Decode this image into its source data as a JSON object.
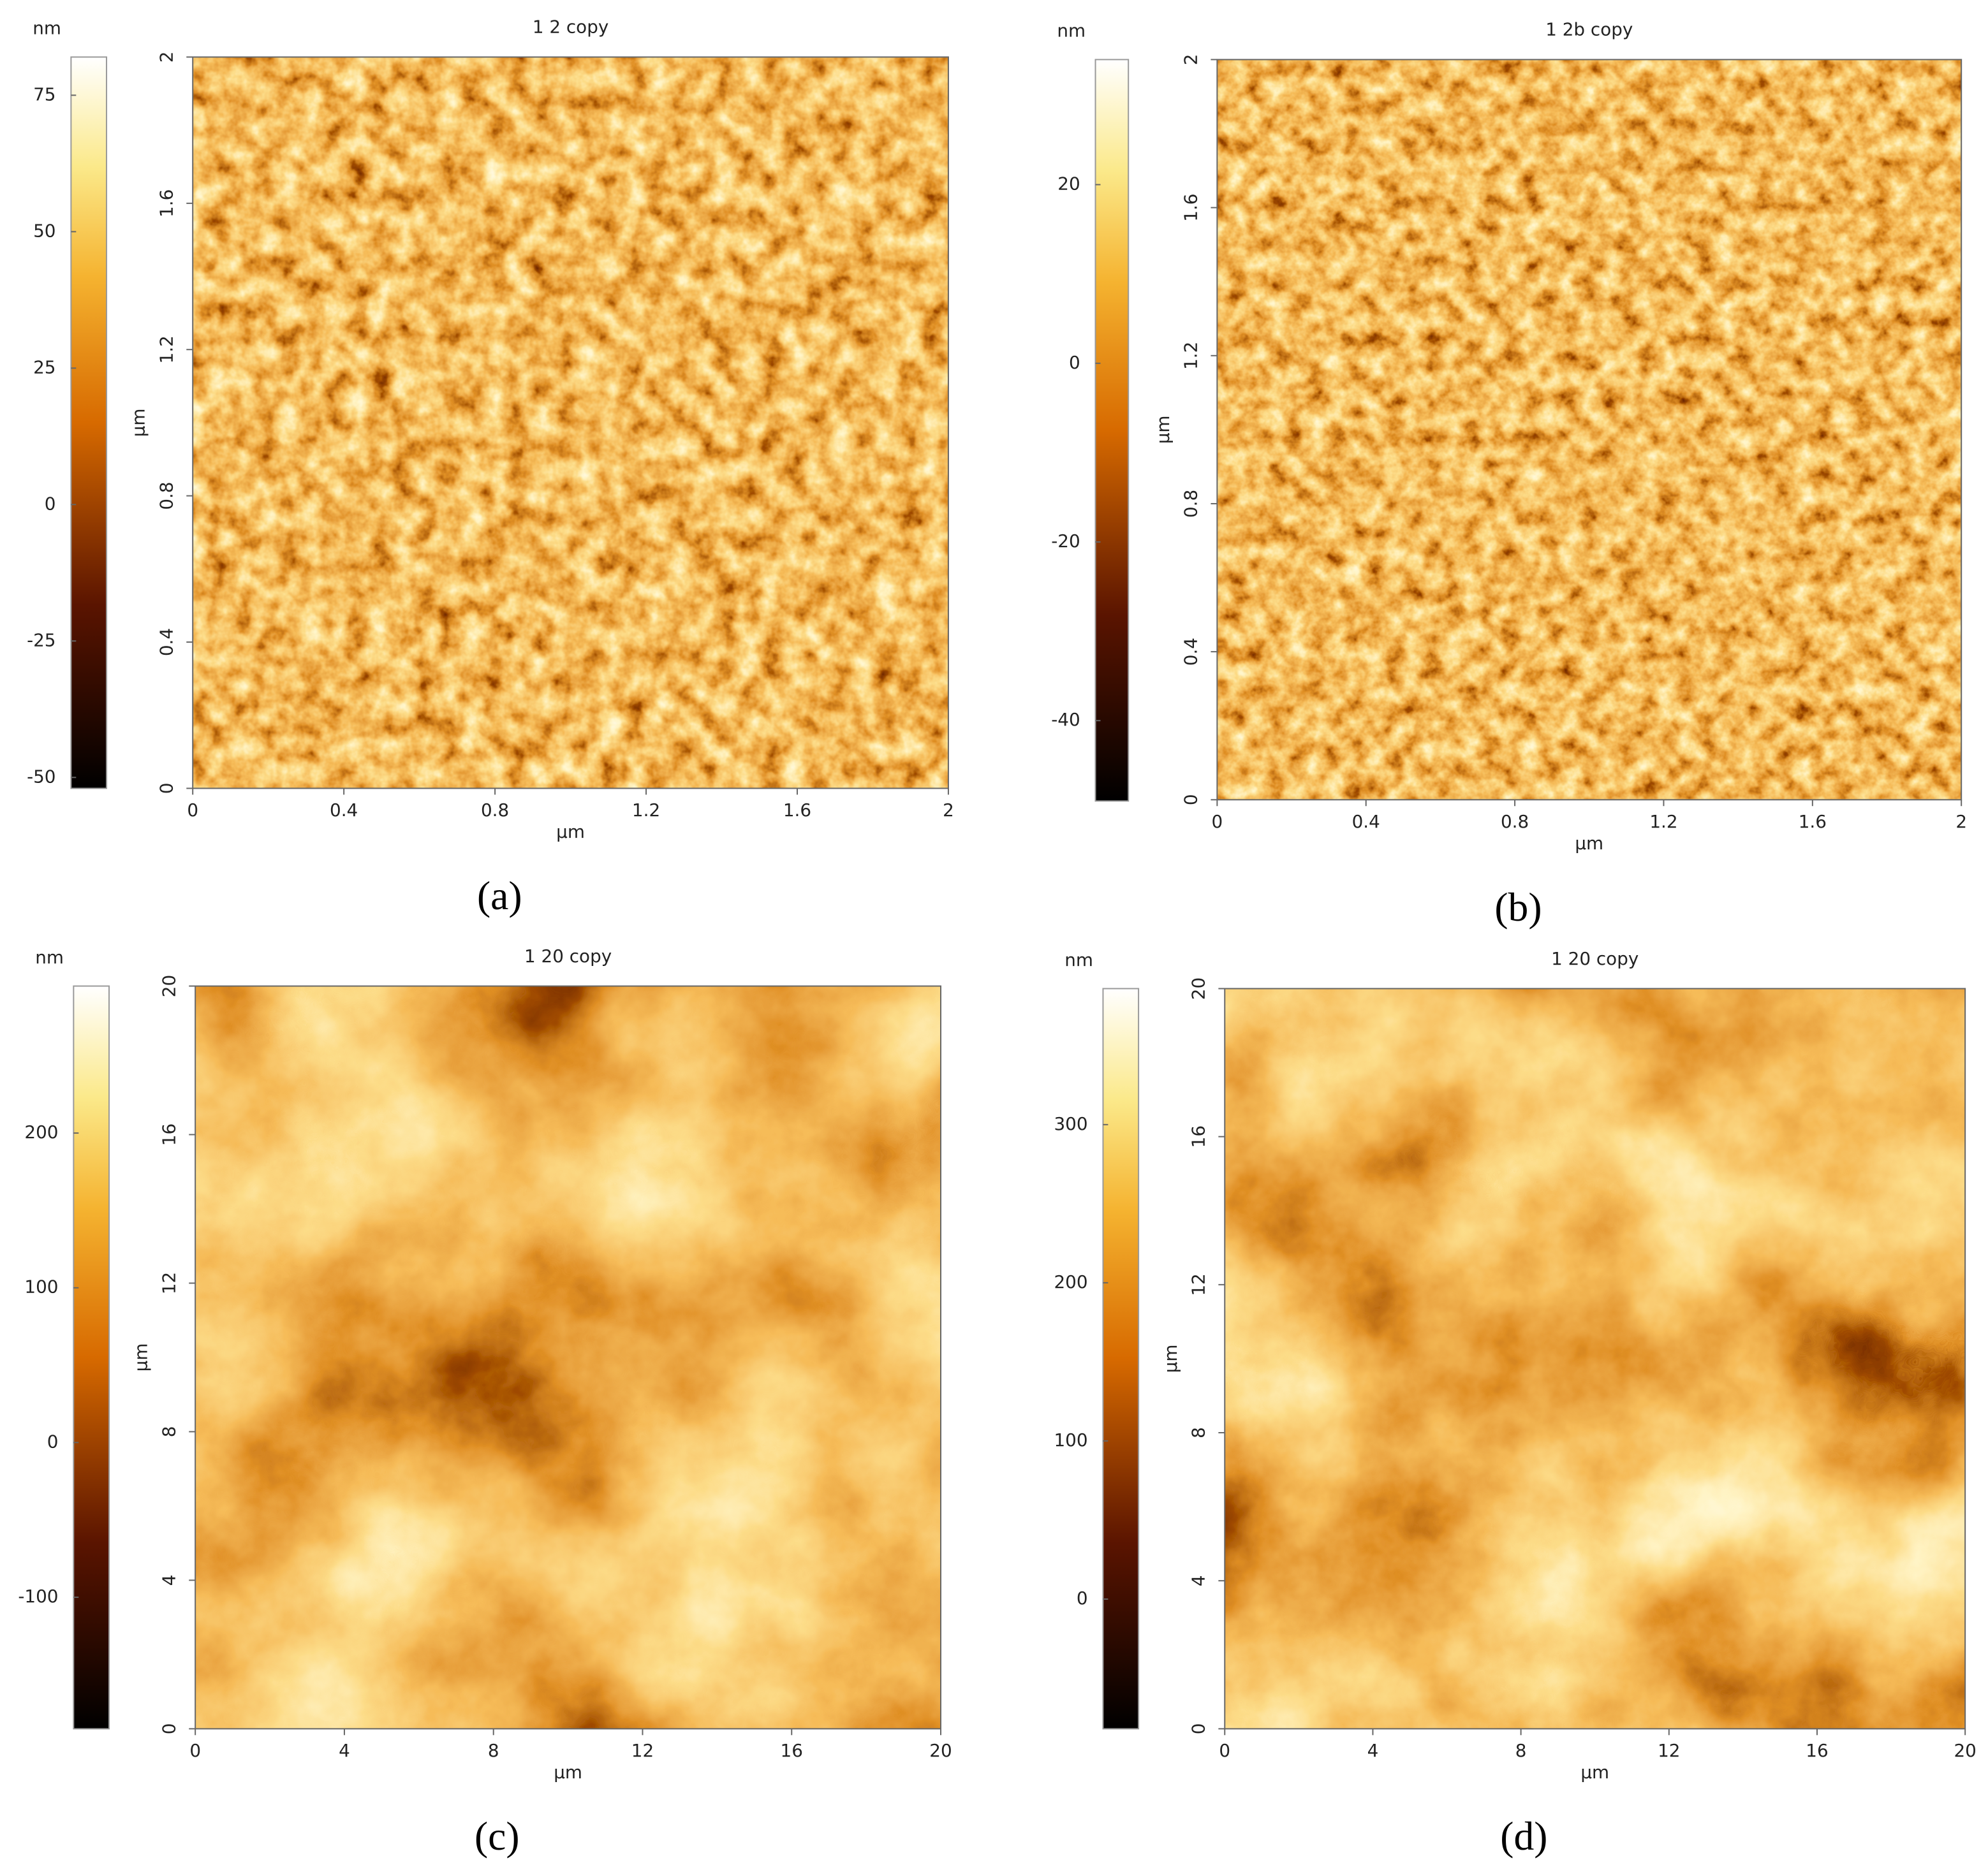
{
  "chart_data": [
    {
      "type": "heatmap",
      "title": "1 2 copy",
      "panel_label": "(a)",
      "colorbar_label": "nm",
      "clim": [
        -52,
        82
      ],
      "cticks": [
        -50,
        -25,
        0,
        25,
        50,
        75
      ],
      "xlabel": "µm",
      "ylabel": "µm",
      "xlim": [
        0,
        2
      ],
      "xticks": [
        0,
        0.4,
        0.8,
        1.2,
        1.6,
        2
      ],
      "ylim": [
        0,
        2
      ],
      "yticks": [
        0,
        0.4,
        0.8,
        1.2,
        1.6,
        2
      ]
    },
    {
      "type": "heatmap",
      "title": "1 2b copy",
      "panel_label": "(b)",
      "colorbar_label": "nm",
      "clim": [
        -49,
        34
      ],
      "cticks": [
        -40,
        -20,
        0,
        20
      ],
      "xlabel": "µm",
      "ylabel": "µm",
      "xlim": [
        0,
        2
      ],
      "xticks": [
        0,
        0.4,
        0.8,
        1.2,
        1.6,
        2
      ],
      "ylim": [
        0,
        2
      ],
      "yticks": [
        0,
        0.4,
        0.8,
        1.2,
        1.6,
        2
      ]
    },
    {
      "type": "heatmap",
      "title": "1 20 copy",
      "panel_label": "(c)",
      "colorbar_label": "nm",
      "clim": [
        -185,
        295
      ],
      "cticks": [
        -100,
        0,
        100,
        200
      ],
      "xlabel": "µm",
      "ylabel": "µm",
      "xlim": [
        0,
        20
      ],
      "xticks": [
        0,
        4,
        8,
        12,
        16,
        20
      ],
      "ylim": [
        0,
        20
      ],
      "yticks": [
        0,
        4,
        8,
        12,
        16,
        20
      ]
    },
    {
      "type": "heatmap",
      "title": "1 20 copy",
      "panel_label": "(d)",
      "colorbar_label": "nm",
      "clim": [
        -82,
        386
      ],
      "cticks": [
        0,
        100,
        200,
        300
      ],
      "xlabel": "µm",
      "ylabel": "µm",
      "xlim": [
        0,
        20
      ],
      "xticks": [
        0,
        4,
        8,
        12,
        16,
        20
      ],
      "ylim": [
        0,
        20
      ],
      "yticks": [
        0,
        4,
        8,
        12,
        16,
        20
      ]
    }
  ]
}
